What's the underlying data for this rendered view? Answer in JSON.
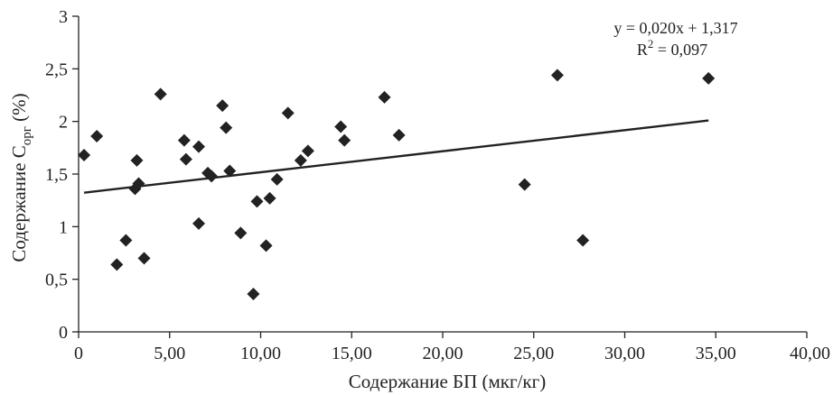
{
  "chart_data": {
    "type": "scatter",
    "title": "",
    "xlabel": "Содержание БП (мкг/кг)",
    "ylabel": {
      "text": "Содержание С",
      "subscript": "орг",
      "suffix": " (%)"
    },
    "xlim": [
      0,
      40
    ],
    "ylim": [
      0,
      3
    ],
    "x_ticks": [
      "0",
      "5,00",
      "10,00",
      "15,00",
      "20,00",
      "25,00",
      "30,00",
      "35,00",
      "40,00"
    ],
    "x_tick_values": [
      0,
      5,
      10,
      15,
      20,
      25,
      30,
      35,
      40
    ],
    "y_ticks": [
      "0",
      "0,5",
      "1",
      "1,5",
      "2",
      "2,5",
      "3"
    ],
    "y_tick_values": [
      0,
      0.5,
      1,
      1.5,
      2,
      2.5,
      3
    ],
    "grid": false,
    "marker": "diamond",
    "marker_color": "#222222",
    "trendline": {
      "slope": 0.02,
      "intercept": 1.317,
      "x_range": [
        0.3,
        34.6
      ],
      "equation": "y = 0,020x + 1,317",
      "r2_label": "R",
      "r2_sup": "2",
      "r2_value": " = 0,097"
    },
    "series": [
      {
        "points": [
          [
            0.3,
            1.68
          ],
          [
            1.0,
            1.86
          ],
          [
            2.1,
            0.64
          ],
          [
            2.6,
            0.87
          ],
          [
            3.1,
            1.36
          ],
          [
            3.2,
            1.63
          ],
          [
            3.3,
            1.41
          ],
          [
            3.6,
            0.7
          ],
          [
            4.5,
            2.26
          ],
          [
            5.8,
            1.82
          ],
          [
            5.9,
            1.64
          ],
          [
            6.6,
            1.03
          ],
          [
            6.6,
            1.76
          ],
          [
            7.1,
            1.51
          ],
          [
            7.3,
            1.48
          ],
          [
            7.9,
            2.15
          ],
          [
            8.1,
            1.94
          ],
          [
            8.3,
            1.53
          ],
          [
            8.9,
            0.94
          ],
          [
            9.6,
            0.36
          ],
          [
            9.8,
            1.24
          ],
          [
            10.3,
            0.82
          ],
          [
            10.5,
            1.27
          ],
          [
            10.9,
            1.45
          ],
          [
            11.5,
            2.08
          ],
          [
            12.2,
            1.63
          ],
          [
            12.6,
            1.72
          ],
          [
            14.4,
            1.95
          ],
          [
            14.6,
            1.82
          ],
          [
            16.8,
            2.23
          ],
          [
            17.6,
            1.87
          ],
          [
            24.5,
            1.4
          ],
          [
            26.3,
            2.44
          ],
          [
            27.7,
            0.87
          ],
          [
            34.6,
            2.41
          ]
        ]
      }
    ]
  }
}
